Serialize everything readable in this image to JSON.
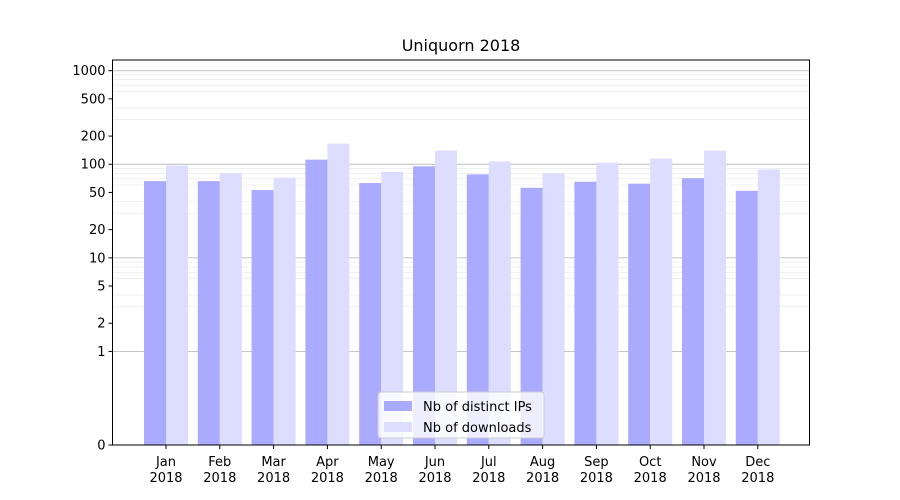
{
  "chart_data": {
    "type": "bar",
    "title": "Uniquorn 2018",
    "xlabel": "",
    "ylabel": "",
    "y_scale": "symlog",
    "ylim": [
      0,
      1300
    ],
    "y_ticks": [
      0,
      1,
      2,
      5,
      10,
      20,
      50,
      100,
      200,
      500,
      1000
    ],
    "y_tick_labels": [
      "0",
      "1",
      "2",
      "5",
      "10",
      "20",
      "50",
      "100",
      "200",
      "500",
      "1000"
    ],
    "grid": "horizontal",
    "legend_position": "bottom-center",
    "categories": [
      {
        "month": "Jan",
        "year": "2018"
      },
      {
        "month": "Feb",
        "year": "2018"
      },
      {
        "month": "Mar",
        "year": "2018"
      },
      {
        "month": "Apr",
        "year": "2018"
      },
      {
        "month": "May",
        "year": "2018"
      },
      {
        "month": "Jun",
        "year": "2018"
      },
      {
        "month": "Jul",
        "year": "2018"
      },
      {
        "month": "Aug",
        "year": "2018"
      },
      {
        "month": "Sep",
        "year": "2018"
      },
      {
        "month": "Oct",
        "year": "2018"
      },
      {
        "month": "Nov",
        "year": "2018"
      },
      {
        "month": "Dec",
        "year": "2018"
      }
    ],
    "series": [
      {
        "name": "Nb of distinct IPs",
        "color": "#aaaaff",
        "values": [
          66,
          66,
          53,
          112,
          63,
          95,
          78,
          56,
          65,
          62,
          71,
          52
        ]
      },
      {
        "name": "Nb of downloads",
        "color": "#ddddff",
        "values": [
          97,
          80,
          72,
          166,
          83,
          140,
          107,
          80,
          104,
          115,
          140,
          88
        ]
      }
    ]
  }
}
